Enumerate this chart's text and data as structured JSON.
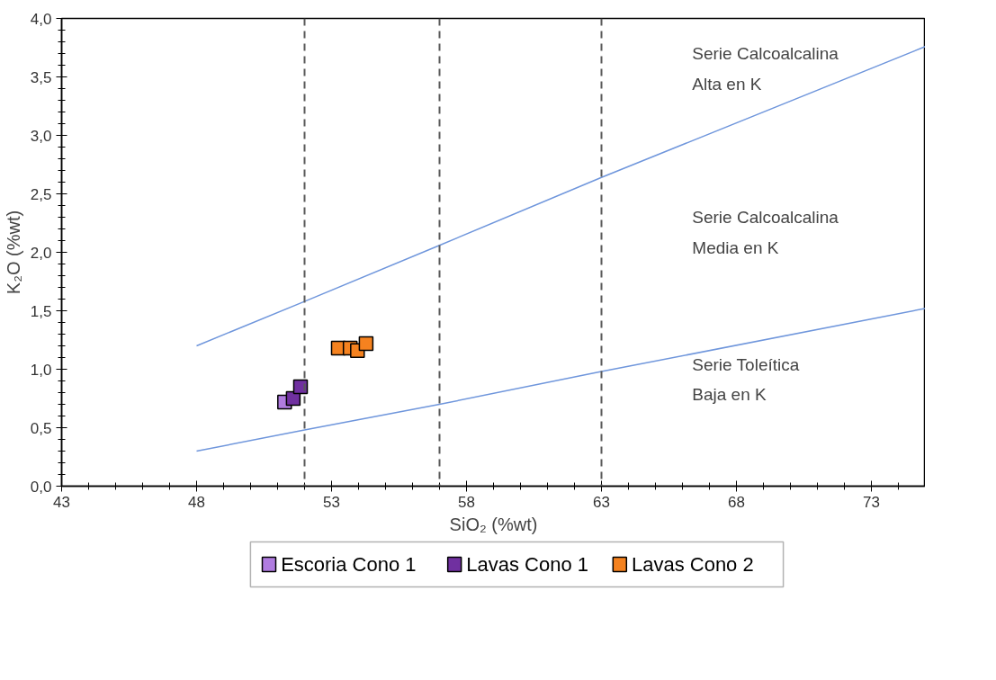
{
  "chart_data": {
    "type": "scatter",
    "xlabel": "SiO₂ (%wt)",
    "ylabel": "K₂O (%wt)",
    "xlim": [
      43,
      75
    ],
    "ylim": [
      0,
      4
    ],
    "xticks": [
      43,
      48,
      53,
      58,
      63,
      68,
      73
    ],
    "yticks": [
      {
        "value": 0,
        "label": "0,0"
      },
      {
        "value": 0.5,
        "label": "0,5"
      },
      {
        "value": 1,
        "label": "1,0"
      },
      {
        "value": 1.5,
        "label": "1,5"
      },
      {
        "value": 2,
        "label": "2,0"
      },
      {
        "value": 2.5,
        "label": "2,5"
      },
      {
        "value": 3,
        "label": "3,0"
      },
      {
        "value": 3.5,
        "label": "3,5"
      },
      {
        "value": 4,
        "label": "4,0"
      }
    ],
    "grid": false,
    "legend": "bottom",
    "marker": "square",
    "series": [
      {
        "type": "line",
        "marker": "none",
        "color": "#6f96dc",
        "x": [
          48,
          52,
          57,
          63,
          75
        ],
        "values": [
          1.2,
          1.58,
          2.06,
          2.64,
          3.76
        ]
      },
      {
        "type": "line",
        "marker": "none",
        "color": "#6f96dc",
        "x": [
          48,
          52,
          57,
          63,
          75
        ],
        "values": [
          0.3,
          0.48,
          0.7,
          0.98,
          1.52
        ]
      },
      {
        "name": "Escoria Cono 1",
        "color": "#b07ce0",
        "x": [
          51.26
        ],
        "values": [
          0.72
        ]
      },
      {
        "name": "Lavas Cono 1",
        "color": "#7030a0",
        "x": [
          51.58,
          51.85
        ],
        "values": [
          0.75,
          0.85
        ]
      },
      {
        "name": "Lavas Cono 2",
        "color": "#f5821f",
        "x": [
          53.25,
          53.69,
          53.96,
          54.28
        ],
        "values": [
          1.18,
          1.18,
          1.16,
          1.22
        ]
      }
    ],
    "ref_lines": [
      {
        "axis": "x",
        "value": 52,
        "color": "#595959",
        "line_style": "dashed"
      },
      {
        "axis": "x",
        "value": 57,
        "color": "#595959",
        "line_style": "dashed"
      },
      {
        "axis": "x",
        "value": 63,
        "color": "#595959",
        "line_style": "dashed"
      }
    ],
    "annotations": [
      "Serie Calcoalcalina\n Alta en K",
      "Serie Calcoalcalina\nMedia en K",
      "Serie Toleítica\nBaja en K"
    ]
  }
}
